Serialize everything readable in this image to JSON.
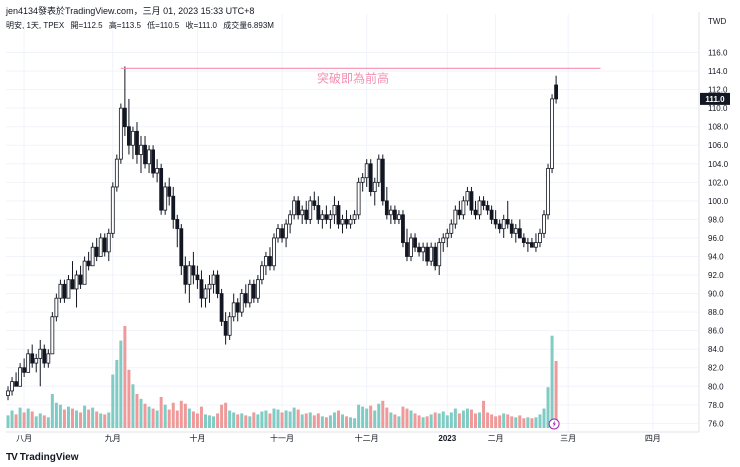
{
  "header": {
    "publisher": "jen4134發表於TradingView.com，三月 01, 2023 15:33 UTC+8"
  },
  "legend": {
    "symbol": "明安, 1天, TPEX",
    "open": "開=112.5",
    "high": "高=113.5",
    "low": "低=110.5",
    "close": "收=111.0",
    "volume": "成交量6.893M"
  },
  "currency": "TWD",
  "branding": {
    "logo_text": "TradingView",
    "logo_mark": "TV"
  },
  "annotation": {
    "text": "突破即為前高",
    "level": 114.3,
    "color": "#f48fb1"
  },
  "price_tag": {
    "value": "111.0",
    "color": "#131722"
  },
  "colors": {
    "up_body": "#ffffff",
    "candle_outline": "#131722",
    "down_body": "#131722",
    "volume_up": "#80cbc4",
    "volume_down": "#ef9a9a",
    "grid": "#f0f3fa",
    "axis_text": "#131722",
    "alert_icon": "#9c27b0"
  },
  "chart_data": {
    "type": "candlestick",
    "title": "",
    "grid": true,
    "y_axis": {
      "range": [
        75.5,
        118
      ],
      "ticks": [
        "76.0",
        "78.0",
        "80.0",
        "82.0",
        "84.0",
        "86.0",
        "88.0",
        "90.0",
        "92.0",
        "94.0",
        "96.0",
        "98.0",
        "100.0",
        "102.0",
        "104.0",
        "106.0",
        "108.0",
        "110.0",
        "112.0",
        "114.0",
        "116.0"
      ]
    },
    "x_axis": {
      "ticks": [
        {
          "label": "八月",
          "index": 4
        },
        {
          "label": "九月",
          "index": 26
        },
        {
          "label": "十月",
          "index": 47
        },
        {
          "label": "十一月",
          "index": 68
        },
        {
          "label": "十二月",
          "index": 89
        },
        {
          "label": "2023",
          "index": 109
        },
        {
          "label": "二月",
          "index": 121
        },
        {
          "label": "三月",
          "index": 139
        },
        {
          "label": "四月",
          "index": 160
        }
      ]
    },
    "candles": [
      [
        79.0,
        80.0,
        78.5,
        79.5,
        1.3
      ],
      [
        79.5,
        81.0,
        79.0,
        80.5,
        1.8
      ],
      [
        80.5,
        81.5,
        80.0,
        80.0,
        1.4
      ],
      [
        80.0,
        82.5,
        80.0,
        82.0,
        2.1
      ],
      [
        82.0,
        83.0,
        81.0,
        81.5,
        1.6
      ],
      [
        81.5,
        84.0,
        81.5,
        83.5,
        2.0
      ],
      [
        83.5,
        84.5,
        82.0,
        82.5,
        1.7
      ],
      [
        82.5,
        83.5,
        81.5,
        83.0,
        1.2
      ],
      [
        83.0,
        85.0,
        80.0,
        84.0,
        1.5
      ],
      [
        84.0,
        84.5,
        82.0,
        82.5,
        1.3
      ],
      [
        82.5,
        84.0,
        82.0,
        83.5,
        1.1
      ],
      [
        83.5,
        88.0,
        83.5,
        87.5,
        3.5
      ],
      [
        87.5,
        90.0,
        87.0,
        89.5,
        2.6
      ],
      [
        89.5,
        91.5,
        89.0,
        91.0,
        2.4
      ],
      [
        91.0,
        91.5,
        89.0,
        89.5,
        1.9
      ],
      [
        89.5,
        92.0,
        89.5,
        91.5,
        2.2
      ],
      [
        91.5,
        93.5,
        90.5,
        90.5,
        2.0
      ],
      [
        90.5,
        92.5,
        88.5,
        92.0,
        1.8
      ],
      [
        92.0,
        93.0,
        90.5,
        91.0,
        1.6
      ],
      [
        91.0,
        94.0,
        91.0,
        93.5,
        2.3
      ],
      [
        93.5,
        94.5,
        92.5,
        93.0,
        1.9
      ],
      [
        93.0,
        95.5,
        93.0,
        95.0,
        2.1
      ],
      [
        95.0,
        96.0,
        93.5,
        94.0,
        1.7
      ],
      [
        94.0,
        96.5,
        94.0,
        96.0,
        1.5
      ],
      [
        96.0,
        96.5,
        94.0,
        94.5,
        1.4
      ],
      [
        94.5,
        97.0,
        93.5,
        96.5,
        1.6
      ],
      [
        96.5,
        102.0,
        96.0,
        101.5,
        5.5
      ],
      [
        101.5,
        105.0,
        101.0,
        104.5,
        7.0
      ],
      [
        104.5,
        110.5,
        104.0,
        110.0,
        9.0
      ],
      [
        110.0,
        114.5,
        107.0,
        108.0,
        10.5
      ],
      [
        108.0,
        111.0,
        105.0,
        106.0,
        6.0
      ],
      [
        106.0,
        108.0,
        104.5,
        107.5,
        4.5
      ],
      [
        107.5,
        108.5,
        104.0,
        105.0,
        3.5
      ],
      [
        105.0,
        107.0,
        103.0,
        106.0,
        3.0
      ],
      [
        106.0,
        107.0,
        103.5,
        104.0,
        2.5
      ],
      [
        104.0,
        106.0,
        103.0,
        105.5,
        2.2
      ],
      [
        105.5,
        106.0,
        102.5,
        103.0,
        2.0
      ],
      [
        103.0,
        104.5,
        102.0,
        103.5,
        1.8
      ],
      [
        103.5,
        104.0,
        98.5,
        99.0,
        3.2
      ],
      [
        99.0,
        102.0,
        98.5,
        101.5,
        2.4
      ],
      [
        101.5,
        102.5,
        99.5,
        100.5,
        1.9
      ],
      [
        100.5,
        101.5,
        97.0,
        98.0,
        2.6
      ],
      [
        98.0,
        98.5,
        95.0,
        97.0,
        1.8
      ],
      [
        97.0,
        97.5,
        92.0,
        93.0,
        2.8
      ],
      [
        93.0,
        94.0,
        90.0,
        91.0,
        2.5
      ],
      [
        91.0,
        93.5,
        89.0,
        93.0,
        2.0
      ],
      [
        93.0,
        94.5,
        91.0,
        92.0,
        1.7
      ],
      [
        92.0,
        93.0,
        90.5,
        91.5,
        1.5
      ],
      [
        91.5,
        92.5,
        88.5,
        89.5,
        2.2
      ],
      [
        89.5,
        91.0,
        88.5,
        90.5,
        1.4
      ],
      [
        90.5,
        92.0,
        89.0,
        91.0,
        1.3
      ],
      [
        91.0,
        92.5,
        90.0,
        92.0,
        1.2
      ],
      [
        92.0,
        92.5,
        89.5,
        90.0,
        1.5
      ],
      [
        90.0,
        90.5,
        86.5,
        87.0,
        2.4
      ],
      [
        87.0,
        88.0,
        84.5,
        85.5,
        2.6
      ],
      [
        85.5,
        88.0,
        85.0,
        87.5,
        1.8
      ],
      [
        87.5,
        90.0,
        87.0,
        89.0,
        1.6
      ],
      [
        89.0,
        89.5,
        87.0,
        88.0,
        1.4
      ],
      [
        88.0,
        90.5,
        87.5,
        90.0,
        1.5
      ],
      [
        90.0,
        91.0,
        88.5,
        89.0,
        1.3
      ],
      [
        89.0,
        91.5,
        88.5,
        91.0,
        1.2
      ],
      [
        91.0,
        91.5,
        89.0,
        89.5,
        1.6
      ],
      [
        89.5,
        92.0,
        89.0,
        91.5,
        1.4
      ],
      [
        91.5,
        93.5,
        91.0,
        93.0,
        1.7
      ],
      [
        93.0,
        94.5,
        92.0,
        94.0,
        1.8
      ],
      [
        94.0,
        95.0,
        92.5,
        93.0,
        1.5
      ],
      [
        93.0,
        96.5,
        92.5,
        96.0,
        2.0
      ],
      [
        96.0,
        97.5,
        95.5,
        97.0,
        1.9
      ],
      [
        97.0,
        97.5,
        95.5,
        96.0,
        1.6
      ],
      [
        96.0,
        98.0,
        95.0,
        97.5,
        1.8
      ],
      [
        97.5,
        99.0,
        96.5,
        98.5,
        1.7
      ],
      [
        98.5,
        100.5,
        98.0,
        100.0,
        2.1
      ],
      [
        100.0,
        100.5,
        98.0,
        98.5,
        1.9
      ],
      [
        98.5,
        99.5,
        97.5,
        99.0,
        1.4
      ],
      [
        99.0,
        100.0,
        97.5,
        98.0,
        1.5
      ],
      [
        98.0,
        100.5,
        97.5,
        100.0,
        1.6
      ],
      [
        100.0,
        101.0,
        99.0,
        99.5,
        1.3
      ],
      [
        99.5,
        100.5,
        97.5,
        98.0,
        1.5
      ],
      [
        98.0,
        99.0,
        97.0,
        98.5,
        1.2
      ],
      [
        98.5,
        99.5,
        97.5,
        98.0,
        1.1
      ],
      [
        98.0,
        99.0,
        97.0,
        98.5,
        1.3
      ],
      [
        98.5,
        100.5,
        97.5,
        99.5,
        1.6
      ],
      [
        99.5,
        100.0,
        97.0,
        97.5,
        1.8
      ],
      [
        97.5,
        98.5,
        96.5,
        98.0,
        1.4
      ],
      [
        98.0,
        99.0,
        97.0,
        97.5,
        1.2
      ],
      [
        97.5,
        98.5,
        97.0,
        98.0,
        1.1
      ],
      [
        98.0,
        99.0,
        97.5,
        98.5,
        1.0
      ],
      [
        98.5,
        102.5,
        98.0,
        102.0,
        2.4
      ],
      [
        102.0,
        103.0,
        101.0,
        102.5,
        2.2
      ],
      [
        102.5,
        104.5,
        101.5,
        104.0,
        2.0
      ],
      [
        104.0,
        104.5,
        100.5,
        101.0,
        2.3
      ],
      [
        101.0,
        102.5,
        99.5,
        102.0,
        1.8
      ],
      [
        102.0,
        105.0,
        101.5,
        104.5,
        2.5
      ],
      [
        104.5,
        105.0,
        99.5,
        100.0,
        2.8
      ],
      [
        100.0,
        101.5,
        98.0,
        98.5,
        2.1
      ],
      [
        98.5,
        99.5,
        97.5,
        99.0,
        1.6
      ],
      [
        99.0,
        99.5,
        97.5,
        98.0,
        1.4
      ],
      [
        98.0,
        99.0,
        97.5,
        98.5,
        1.2
      ],
      [
        98.5,
        99.0,
        95.0,
        95.5,
        2.2
      ],
      [
        95.5,
        97.0,
        93.5,
        94.0,
        2.0
      ],
      [
        94.0,
        96.5,
        93.5,
        96.0,
        1.8
      ],
      [
        96.0,
        96.5,
        94.5,
        95.0,
        1.5
      ],
      [
        95.0,
        95.5,
        94.0,
        94.5,
        1.3
      ],
      [
        94.5,
        95.5,
        93.5,
        95.0,
        1.1
      ],
      [
        95.0,
        95.5,
        93.0,
        93.5,
        1.2
      ],
      [
        93.5,
        95.5,
        93.0,
        95.0,
        1.4
      ],
      [
        95.0,
        95.5,
        92.5,
        93.0,
        1.6
      ],
      [
        93.0,
        96.0,
        92.0,
        95.5,
        1.5
      ],
      [
        95.5,
        96.5,
        94.5,
        96.0,
        1.7
      ],
      [
        96.0,
        97.0,
        95.0,
        96.5,
        1.3
      ],
      [
        96.5,
        98.0,
        96.0,
        97.5,
        1.6
      ],
      [
        97.5,
        99.5,
        97.0,
        99.0,
        2.0
      ],
      [
        99.0,
        100.0,
        98.0,
        98.5,
        1.5
      ],
      [
        98.5,
        100.5,
        98.0,
        100.0,
        1.8
      ],
      [
        100.0,
        101.5,
        99.5,
        101.0,
        2.0
      ],
      [
        101.0,
        101.5,
        98.5,
        99.0,
        1.9
      ],
      [
        99.0,
        100.0,
        98.0,
        98.5,
        1.5
      ],
      [
        98.5,
        100.5,
        98.0,
        100.0,
        1.6
      ],
      [
        100.0,
        100.5,
        99.0,
        99.5,
        2.8
      ],
      [
        99.5,
        100.0,
        98.5,
        99.0,
        1.6
      ],
      [
        99.0,
        99.5,
        97.5,
        98.0,
        1.4
      ],
      [
        98.0,
        99.0,
        97.0,
        97.5,
        1.2
      ],
      [
        97.5,
        98.0,
        96.5,
        97.0,
        1.3
      ],
      [
        97.0,
        98.5,
        96.0,
        98.0,
        1.5
      ],
      [
        98.0,
        100.0,
        97.0,
        97.5,
        1.4
      ],
      [
        97.5,
        98.0,
        96.0,
        96.5,
        1.2
      ],
      [
        96.5,
        97.5,
        95.5,
        97.0,
        1.1
      ],
      [
        97.0,
        98.0,
        96.0,
        96.0,
        1.3
      ],
      [
        96.0,
        96.5,
        95.0,
        95.5,
        1.0
      ],
      [
        95.5,
        96.0,
        94.5,
        95.5,
        1.1
      ],
      [
        95.5,
        96.0,
        95.0,
        95.0,
        1.0
      ],
      [
        95.0,
        96.5,
        94.5,
        95.5,
        1.1
      ],
      [
        95.5,
        97.0,
        95.0,
        96.5,
        1.4
      ],
      [
        96.5,
        99.0,
        96.0,
        98.5,
        2.0
      ],
      [
        98.5,
        104.0,
        98.0,
        103.5,
        4.2
      ],
      [
        103.5,
        111.5,
        103.0,
        111.0,
        9.5
      ],
      [
        112.5,
        113.5,
        110.5,
        111.0,
        6.9
      ]
    ]
  }
}
